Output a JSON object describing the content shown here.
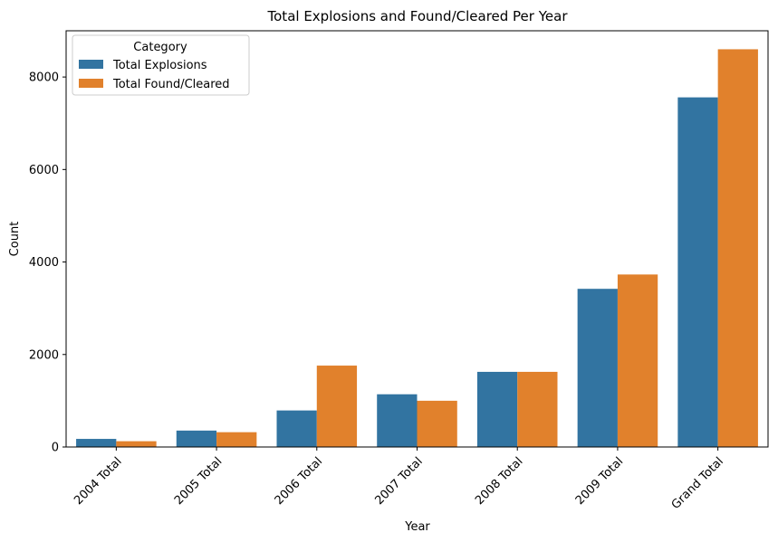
{
  "chart_data": {
    "type": "bar",
    "title": "Total Explosions and Found/Cleared Per Year",
    "xlabel": "Year",
    "ylabel": "Count",
    "ylim": [
      0,
      9000
    ],
    "yticks": [
      0,
      2000,
      4000,
      6000,
      8000
    ],
    "categories": [
      "2004 Total",
      "2005 Total",
      "2006 Total",
      "2007 Total",
      "2008 Total",
      "2009 Total",
      "Grand Total"
    ],
    "series": [
      {
        "name": "Total Explosions",
        "color": "#3274a1",
        "values": [
          175,
          355,
          790,
          1140,
          1625,
          3420,
          7560
        ]
      },
      {
        "name": "Total Found/Cleared",
        "color": "#e1812c",
        "values": [
          125,
          320,
          1760,
          1000,
          1625,
          3730,
          8600
        ]
      }
    ],
    "legend": {
      "title": "Category",
      "placement": "top-left"
    },
    "grid": false
  }
}
